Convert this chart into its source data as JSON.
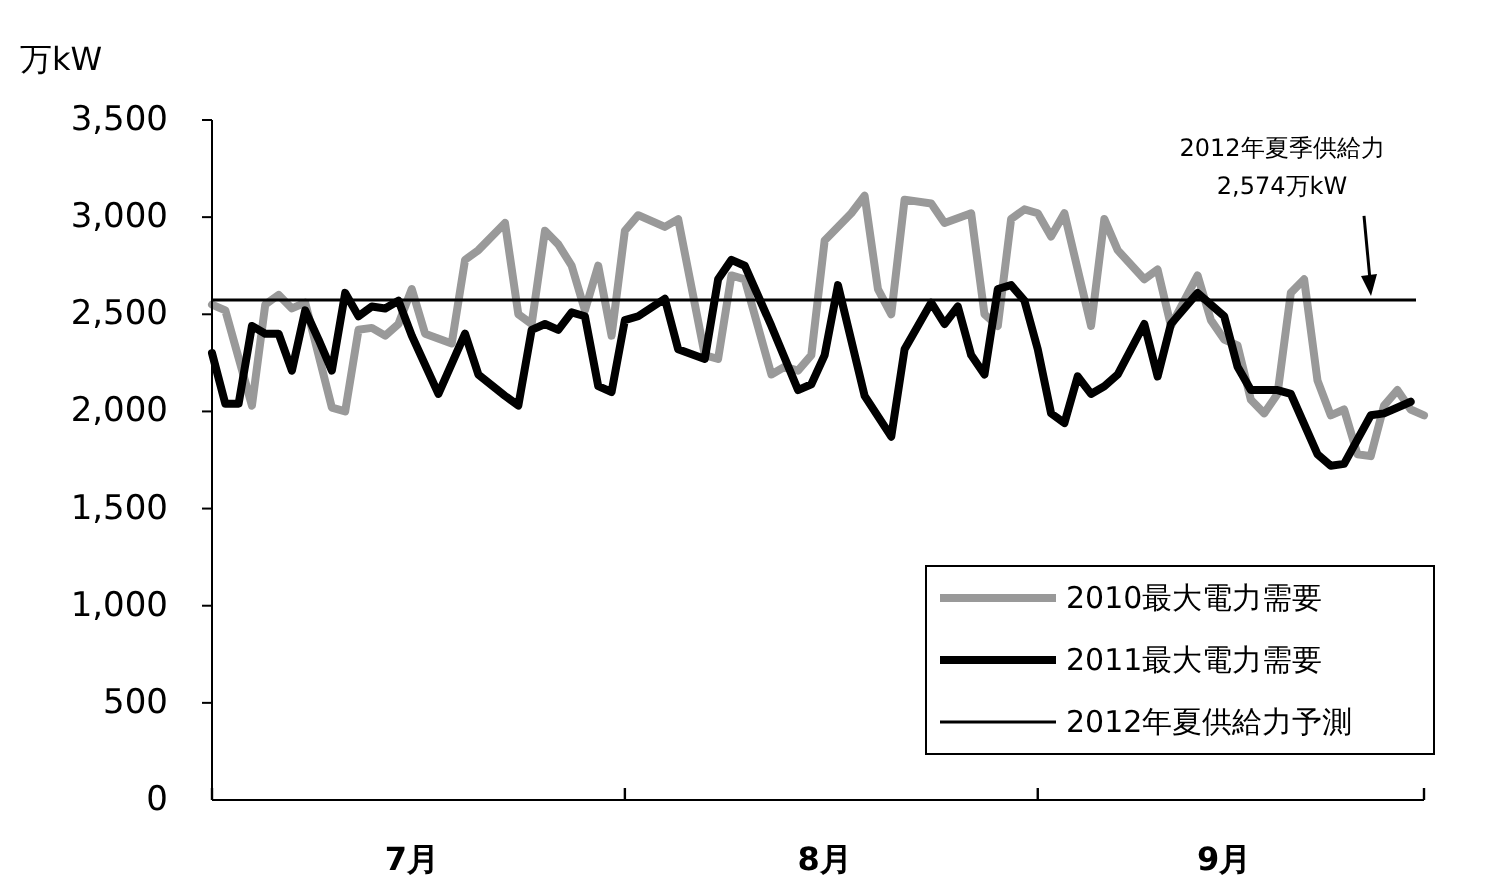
{
  "chart_data": {
    "type": "line",
    "ylabel": "万kW",
    "xlim": [
      "--07-01",
      "--09-30"
    ],
    "xticks": [
      {
        "value": "--07-01",
        "label": null
      },
      {
        "value": "--07-16",
        "label": "7月"
      },
      {
        "value": "--08-01",
        "label": null
      },
      {
        "value": "--08-16",
        "label": "8月"
      },
      {
        "value": "--09-01",
        "label": null
      },
      {
        "value": "--09-15",
        "label": "9月"
      },
      {
        "value": "--09-30",
        "label": null
      }
    ],
    "ylim": [
      0,
      3500
    ],
    "yticks": [
      0,
      500,
      {
        "value": 1000,
        "label": "1,000"
      },
      {
        "value": 1500,
        "label": "1,500"
      },
      {
        "value": 2000,
        "label": "2,000"
      },
      {
        "value": 2500,
        "label": "2,500"
      },
      {
        "value": 3000,
        "label": "3,000"
      },
      {
        "value": 3500,
        "label": "3,500"
      }
    ],
    "series": [
      {
        "name": "2010最大電力需要",
        "color": "#999999",
        "x": [
          "--07-01",
          "--07-02",
          "--07-04",
          "--07-05",
          "--07-06",
          "--07-07",
          "--07-08",
          "--07-10",
          "--07-11",
          "--07-12",
          "--07-13",
          "--07-14",
          "--07-15",
          "--07-16",
          "--07-17",
          "--07-19",
          "--07-20",
          "--07-21",
          "--07-23",
          "--07-24",
          "--07-25",
          "--07-26",
          "--07-27",
          "--07-28",
          "--07-29",
          "--07-30",
          "--07-31",
          "--08-01",
          "--08-02",
          "--08-04",
          "--08-05",
          "--08-07",
          "--08-08",
          "--08-09",
          "--08-10",
          "--08-12",
          "--08-13",
          "--08-14",
          "--08-15",
          "--08-16",
          "--08-18",
          "--08-19",
          "--08-20",
          "--08-21",
          "--08-22",
          "--08-24",
          "--08-25",
          "--08-27",
          "--08-28",
          "--08-29",
          "--08-30",
          "--08-31",
          "--09-01",
          "--09-02",
          "--09-03",
          "--09-05",
          "--09-06",
          "--09-07",
          "--09-09",
          "--09-10",
          "--09-11",
          "--09-13",
          "--09-14",
          "--09-15",
          "--09-16",
          "--09-17",
          "--09-18",
          "--09-19",
          "--09-20",
          "--09-21",
          "--09-22",
          "--09-23",
          "--09-24",
          "--09-25",
          "--09-26",
          "--09-27",
          "--09-28",
          "--09-29",
          "--09-30"
        ],
        "values": [
          2550,
          2520,
          2030,
          2550,
          2600,
          2530,
          2560,
          2020,
          2000,
          2420,
          2430,
          2390,
          2450,
          2630,
          2400,
          2350,
          2780,
          2830,
          2970,
          2500,
          2450,
          2930,
          2860,
          2750,
          2520,
          2750,
          2390,
          2930,
          3010,
          2950,
          2990,
          2290,
          2270,
          2700,
          2680,
          2190,
          2230,
          2210,
          2290,
          2880,
          3020,
          3110,
          2630,
          2500,
          3090,
          3070,
          2970,
          3020,
          2500,
          2440,
          2990,
          3040,
          3020,
          2900,
          3020,
          2440,
          2990,
          2830,
          2680,
          2730,
          2440,
          2700,
          2470,
          2370,
          2340,
          2060,
          1990,
          2090,
          2610,
          2680,
          2160,
          1980,
          2010,
          1780,
          1770,
          2030,
          2110,
          2010,
          1980
        ]
      },
      {
        "name": "2011最大電力需要",
        "color": "#000000",
        "x": [
          "--07-01",
          "--07-02",
          "--07-03",
          "--07-04",
          "--07-05",
          "--07-06",
          "--07-07",
          "--07-08",
          "--07-09",
          "--07-10",
          "--07-11",
          "--07-12",
          "--07-13",
          "--07-14",
          "--07-15",
          "--07-16",
          "--07-18",
          "--07-20",
          "--07-21",
          "--07-23",
          "--07-24",
          "--07-25",
          "--07-26",
          "--07-27",
          "--07-28",
          "--07-29",
          "--07-30",
          "--07-31",
          "--08-01",
          "--08-02",
          "--08-04",
          "--08-05",
          "--08-07",
          "--08-08",
          "--08-09",
          "--08-10",
          "--08-12",
          "--08-14",
          "--08-15",
          "--08-16",
          "--08-17",
          "--08-19",
          "--08-21",
          "--08-22",
          "--08-24",
          "--08-25",
          "--08-26",
          "--08-27",
          "--08-28",
          "--08-29",
          "--08-30",
          "--08-31",
          "--09-01",
          "--09-02",
          "--09-03",
          "--09-04",
          "--09-05",
          "--09-06",
          "--09-07",
          "--09-09",
          "--09-10",
          "--09-11",
          "--09-13",
          "--09-15",
          "--09-16",
          "--09-17",
          "--09-19",
          "--09-20",
          "--09-22",
          "--09-23",
          "--09-24",
          "--09-26",
          "--09-27",
          "--09-29"
        ],
        "values": [
          2300,
          2040,
          2040,
          2440,
          2400,
          2400,
          2210,
          2520,
          2370,
          2210,
          2610,
          2490,
          2540,
          2530,
          2570,
          2390,
          2090,
          2400,
          2190,
          2080,
          2030,
          2420,
          2450,
          2420,
          2510,
          2490,
          2130,
          2100,
          2470,
          2490,
          2580,
          2320,
          2270,
          2680,
          2780,
          2750,
          2440,
          2110,
          2140,
          2290,
          2650,
          2080,
          1870,
          2320,
          2560,
          2450,
          2540,
          2290,
          2190,
          2630,
          2650,
          2570,
          2320,
          1990,
          1940,
          2180,
          2090,
          2130,
          2190,
          2450,
          2180,
          2450,
          2610,
          2490,
          2230,
          2110,
          2110,
          2090,
          1780,
          1720,
          1730,
          1980,
          1990,
          2050
        ]
      }
    ],
    "ref_lines": [
      {
        "axis": "y",
        "value": 2574,
        "label": "2012年夏供給力予測",
        "color": "#000000"
      }
    ],
    "annotations": [
      "2012年夏季供給力\n2,574万kW"
    ],
    "legend": "bottom right",
    "grid": false,
    "marker": "none",
    "line_style": "solid"
  }
}
